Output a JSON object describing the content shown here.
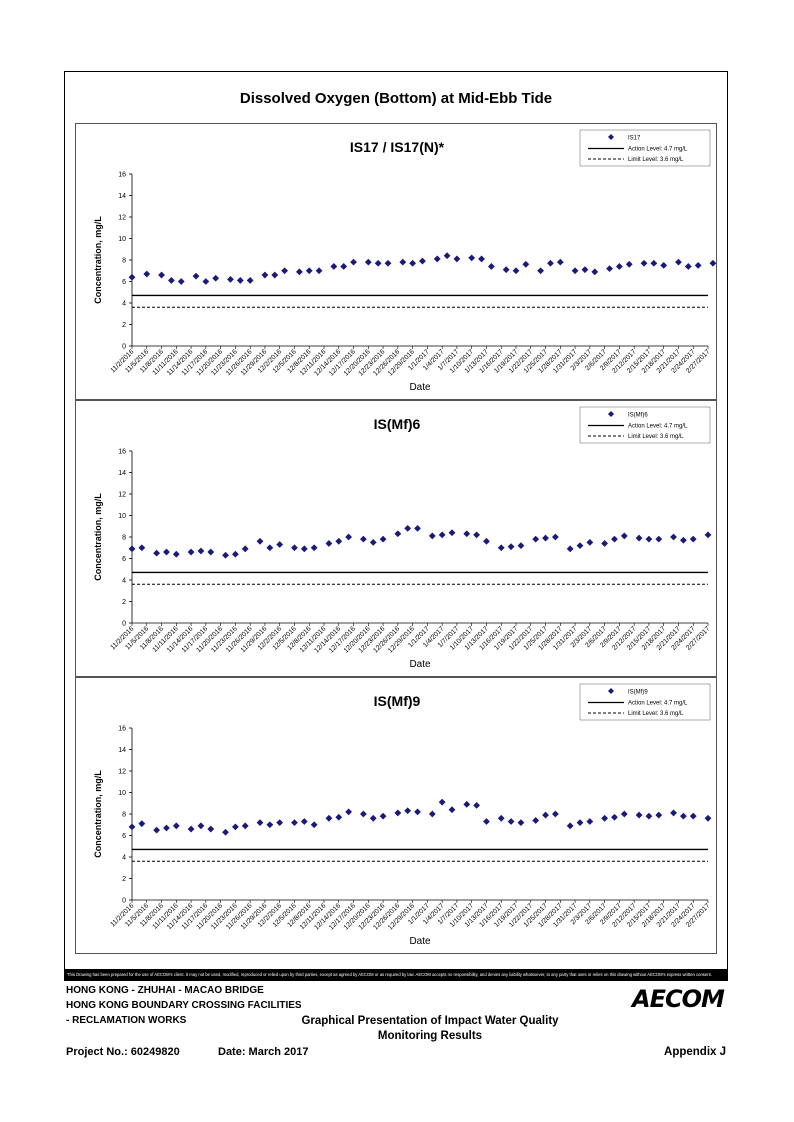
{
  "page_title": "Dissolved Oxygen (Bottom) at Mid-Ebb Tide",
  "disclaimer": "This Drawing has been prepared for the use of AECOM's client. It may not be used, modified, reproduced or relied upon by third parties, except as agreed by AECOM or as required by law. AECOM accepts no responsibility, and denies any liability whatsoever, to any party that uses or relies on this drawing without AECOM's express written consent.",
  "footer": {
    "line1": "HONG KONG - ZHUHAI - MACAO BRIDGE",
    "line2": "HONG KONG BOUNDARY CROSSING FACILITIES",
    "line3": "- RECLAMATION WORKS",
    "project": "Project No.: 60249820",
    "date": "Date: March 2017",
    "title_line1": "Graphical Presentation of Impact Water Quality",
    "title_line2": "Monitoring Results",
    "appendix": "Appendix J",
    "logo": "AECOM"
  },
  "colors": {
    "marker": "#1a1a7a",
    "action": "#000000",
    "limit": "#000000"
  },
  "chart_data": [
    {
      "type": "scatter",
      "title": "IS17 / IS17(N)*",
      "xlabel": "Date",
      "ylabel": "Concentration, mg/L",
      "ylim": [
        0,
        16
      ],
      "yticks": [
        "0",
        "2",
        "4",
        "6",
        "8",
        "10",
        "12",
        "14",
        "16"
      ],
      "xlim": [
        "11/2/2016",
        "2/27/2017"
      ],
      "xticks": [
        "11/2/2016",
        "11/5/2016",
        "11/8/2016",
        "11/11/2016",
        "11/14/2016",
        "11/17/2016",
        "11/20/2016",
        "11/23/2016",
        "11/26/2016",
        "11/29/2016",
        "12/2/2016",
        "12/5/2016",
        "12/8/2016",
        "12/11/2016",
        "12/14/2016",
        "12/17/2016",
        "12/20/2016",
        "12/23/2016",
        "12/26/2016",
        "12/29/2016",
        "1/1/2017",
        "1/4/2017",
        "1/7/2017",
        "1/10/2017",
        "1/13/2017",
        "1/16/2017",
        "1/19/2017",
        "1/22/2017",
        "1/25/2017",
        "1/28/2017",
        "1/31/2017",
        "2/3/2017",
        "2/6/2017",
        "2/9/2017",
        "2/12/2017",
        "2/15/2017",
        "2/18/2017",
        "2/21/2017",
        "2/24/2017",
        "2/27/2017"
      ],
      "legend_position": "top-right",
      "legend": {
        "series": "IS17",
        "action": "Action Level: 4.7 mg/L",
        "limit": "Limit Level: 3.6 mg/L"
      },
      "action_level": 4.7,
      "limit_level": 3.6,
      "series": [
        {
          "name": "IS17",
          "x": [
            "11/2/2016",
            "11/5/2016",
            "11/8/2016",
            "11/10/2016",
            "11/12/2016",
            "11/15/2016",
            "11/17/2016",
            "11/19/2016",
            "11/22/2016",
            "11/24/2016",
            "11/26/2016",
            "11/29/2016",
            "12/1/2016",
            "12/3/2016",
            "12/6/2016",
            "12/8/2016",
            "12/10/2016",
            "12/13/2016",
            "12/15/2016",
            "12/17/2016",
            "12/20/2016",
            "12/22/2016",
            "12/24/2016",
            "12/27/2016",
            "12/29/2016",
            "12/31/2016",
            "1/3/2017",
            "1/5/2017",
            "1/7/2017",
            "1/10/2017",
            "1/12/2017",
            "1/14/2017",
            "1/17/2017",
            "1/19/2017",
            "1/21/2017",
            "1/24/2017",
            "1/26/2017",
            "1/28/2017",
            "1/31/2017",
            "2/2/2017",
            "2/4/2017",
            "2/7/2017",
            "2/9/2017",
            "2/11/2017",
            "2/14/2017",
            "2/16/2017",
            "2/18/2017",
            "2/21/2017",
            "2/23/2017",
            "2/25/2017",
            "2/28/2017"
          ],
          "y": [
            6.4,
            6.7,
            6.6,
            6.1,
            6.0,
            6.5,
            6.0,
            6.3,
            6.2,
            6.1,
            6.1,
            6.6,
            6.6,
            7.0,
            6.9,
            7.0,
            7.0,
            7.4,
            7.4,
            7.8,
            7.8,
            7.7,
            7.7,
            7.8,
            7.7,
            7.9,
            8.1,
            8.4,
            8.1,
            8.2,
            8.1,
            7.4,
            7.1,
            7.0,
            7.6,
            7.0,
            7.7,
            7.8,
            7.0,
            7.1,
            6.9,
            7.2,
            7.4,
            7.6,
            7.7,
            7.7,
            7.5,
            7.8,
            7.4,
            7.5,
            7.7
          ]
        }
      ]
    },
    {
      "type": "scatter",
      "title": "IS(Mf)6",
      "xlabel": "Date",
      "ylabel": "Concentration, mg/L",
      "ylim": [
        0,
        16
      ],
      "yticks": [
        "0",
        "2",
        "4",
        "6",
        "8",
        "10",
        "12",
        "14",
        "16"
      ],
      "xlim": [
        "11/2/2016",
        "2/27/2017"
      ],
      "xticks": [
        "11/2/2016",
        "11/5/2016",
        "11/8/2016",
        "11/11/2016",
        "11/14/2016",
        "11/17/2016",
        "11/20/2016",
        "11/23/2016",
        "11/26/2016",
        "11/29/2016",
        "12/2/2016",
        "12/5/2016",
        "12/8/2016",
        "12/11/2016",
        "12/14/2016",
        "12/17/2016",
        "12/20/2016",
        "12/23/2016",
        "12/26/2016",
        "12/29/2016",
        "1/1/2017",
        "1/4/2017",
        "1/7/2017",
        "1/10/2017",
        "1/13/2017",
        "1/16/2017",
        "1/19/2017",
        "1/22/2017",
        "1/25/2017",
        "1/28/2017",
        "1/31/2017",
        "2/3/2017",
        "2/6/2017",
        "2/9/2017",
        "2/12/2017",
        "2/15/2017",
        "2/18/2017",
        "2/21/2017",
        "2/24/2017",
        "2/27/2017"
      ],
      "legend_position": "top-right",
      "legend": {
        "series": "IS(Mf)6",
        "action": "Action Level: 4.7 mg/L",
        "limit": "Limit Level: 3.6 mg/L"
      },
      "action_level": 4.7,
      "limit_level": 3.6,
      "series": [
        {
          "name": "IS(Mf)6",
          "x": [
            "11/2/2016",
            "11/4/2016",
            "11/7/2016",
            "11/9/2016",
            "11/11/2016",
            "11/14/2016",
            "11/16/2016",
            "11/18/2016",
            "11/21/2016",
            "11/23/2016",
            "11/25/2016",
            "11/28/2016",
            "11/30/2016",
            "12/2/2016",
            "12/5/2016",
            "12/7/2016",
            "12/9/2016",
            "12/12/2016",
            "12/14/2016",
            "12/16/2016",
            "12/19/2016",
            "12/21/2016",
            "12/23/2016",
            "12/26/2016",
            "12/28/2016",
            "12/30/2016",
            "1/2/2017",
            "1/4/2017",
            "1/6/2017",
            "1/9/2017",
            "1/11/2017",
            "1/13/2017",
            "1/16/2017",
            "1/18/2017",
            "1/20/2017",
            "1/23/2017",
            "1/25/2017",
            "1/27/2017",
            "1/30/2017",
            "2/1/2017",
            "2/3/2017",
            "2/6/2017",
            "2/8/2017",
            "2/10/2017",
            "2/13/2017",
            "2/15/2017",
            "2/17/2017",
            "2/20/2017",
            "2/22/2017",
            "2/24/2017",
            "2/27/2017"
          ],
          "y": [
            6.9,
            7.0,
            6.5,
            6.6,
            6.4,
            6.6,
            6.7,
            6.6,
            6.3,
            6.4,
            6.9,
            7.6,
            7.0,
            7.3,
            7.0,
            6.9,
            7.0,
            7.4,
            7.6,
            8.0,
            7.8,
            7.5,
            7.8,
            8.3,
            8.8,
            8.8,
            8.1,
            8.2,
            8.4,
            8.3,
            8.2,
            7.6,
            7.0,
            7.1,
            7.2,
            7.8,
            7.9,
            8.0,
            6.9,
            7.2,
            7.5,
            7.4,
            7.8,
            8.1,
            7.9,
            7.8,
            7.8,
            8.0,
            7.7,
            7.8,
            8.2
          ]
        }
      ]
    },
    {
      "type": "scatter",
      "title": "IS(Mf)9",
      "xlabel": "Date",
      "ylabel": "Concentration, mg/L",
      "ylim": [
        0,
        16
      ],
      "yticks": [
        "0",
        "2",
        "4",
        "6",
        "8",
        "10",
        "12",
        "14",
        "16"
      ],
      "xlim": [
        "11/2/2016",
        "2/27/2017"
      ],
      "xticks": [
        "11/2/2016",
        "11/5/2016",
        "11/8/2016",
        "11/11/2016",
        "11/14/2016",
        "11/17/2016",
        "11/20/2016",
        "11/23/2016",
        "11/26/2016",
        "11/29/2016",
        "12/2/2016",
        "12/5/2016",
        "12/8/2016",
        "12/11/2016",
        "12/14/2016",
        "12/17/2016",
        "12/20/2016",
        "12/23/2016",
        "12/26/2016",
        "12/29/2016",
        "1/1/2017",
        "1/4/2017",
        "1/7/2017",
        "1/10/2017",
        "1/13/2017",
        "1/16/2017",
        "1/19/2017",
        "1/22/2017",
        "1/25/2017",
        "1/28/2017",
        "1/31/2017",
        "2/3/2017",
        "2/6/2017",
        "2/9/2017",
        "2/12/2017",
        "2/15/2017",
        "2/18/2017",
        "2/21/2017",
        "2/24/2017",
        "2/27/2017"
      ],
      "legend_position": "top-right",
      "legend": {
        "series": "IS(Mf)9",
        "action": "Action Level: 4.7 mg/L",
        "limit": "Limit Level: 3.6 mg/L"
      },
      "action_level": 4.7,
      "limit_level": 3.6,
      "series": [
        {
          "name": "IS(Mf)9",
          "x": [
            "11/2/2016",
            "11/4/2016",
            "11/7/2016",
            "11/9/2016",
            "11/11/2016",
            "11/14/2016",
            "11/16/2016",
            "11/18/2016",
            "11/21/2016",
            "11/23/2016",
            "11/25/2016",
            "11/28/2016",
            "11/30/2016",
            "12/2/2016",
            "12/5/2016",
            "12/7/2016",
            "12/9/2016",
            "12/12/2016",
            "12/14/2016",
            "12/16/2016",
            "12/19/2016",
            "12/21/2016",
            "12/23/2016",
            "12/26/2016",
            "12/28/2016",
            "12/30/2016",
            "1/2/2017",
            "1/4/2017",
            "1/6/2017",
            "1/9/2017",
            "1/11/2017",
            "1/13/2017",
            "1/16/2017",
            "1/18/2017",
            "1/20/2017",
            "1/23/2017",
            "1/25/2017",
            "1/27/2017",
            "1/30/2017",
            "2/1/2017",
            "2/3/2017",
            "2/6/2017",
            "2/8/2017",
            "2/10/2017",
            "2/13/2017",
            "2/15/2017",
            "2/17/2017",
            "2/20/2017",
            "2/22/2017",
            "2/24/2017",
            "2/27/2017"
          ],
          "y": [
            6.8,
            7.1,
            6.5,
            6.7,
            6.9,
            6.6,
            6.9,
            6.6,
            6.3,
            6.8,
            6.9,
            7.2,
            7.0,
            7.2,
            7.2,
            7.3,
            7.0,
            7.6,
            7.7,
            8.2,
            8.0,
            7.6,
            7.8,
            8.1,
            8.3,
            8.2,
            8.0,
            9.1,
            8.4,
            8.9,
            8.8,
            7.3,
            7.6,
            7.3,
            7.2,
            7.4,
            7.9,
            8.0,
            6.9,
            7.2,
            7.3,
            7.6,
            7.7,
            8.0,
            7.9,
            7.8,
            7.9,
            8.1,
            7.8,
            7.8,
            7.6
          ]
        }
      ]
    }
  ]
}
